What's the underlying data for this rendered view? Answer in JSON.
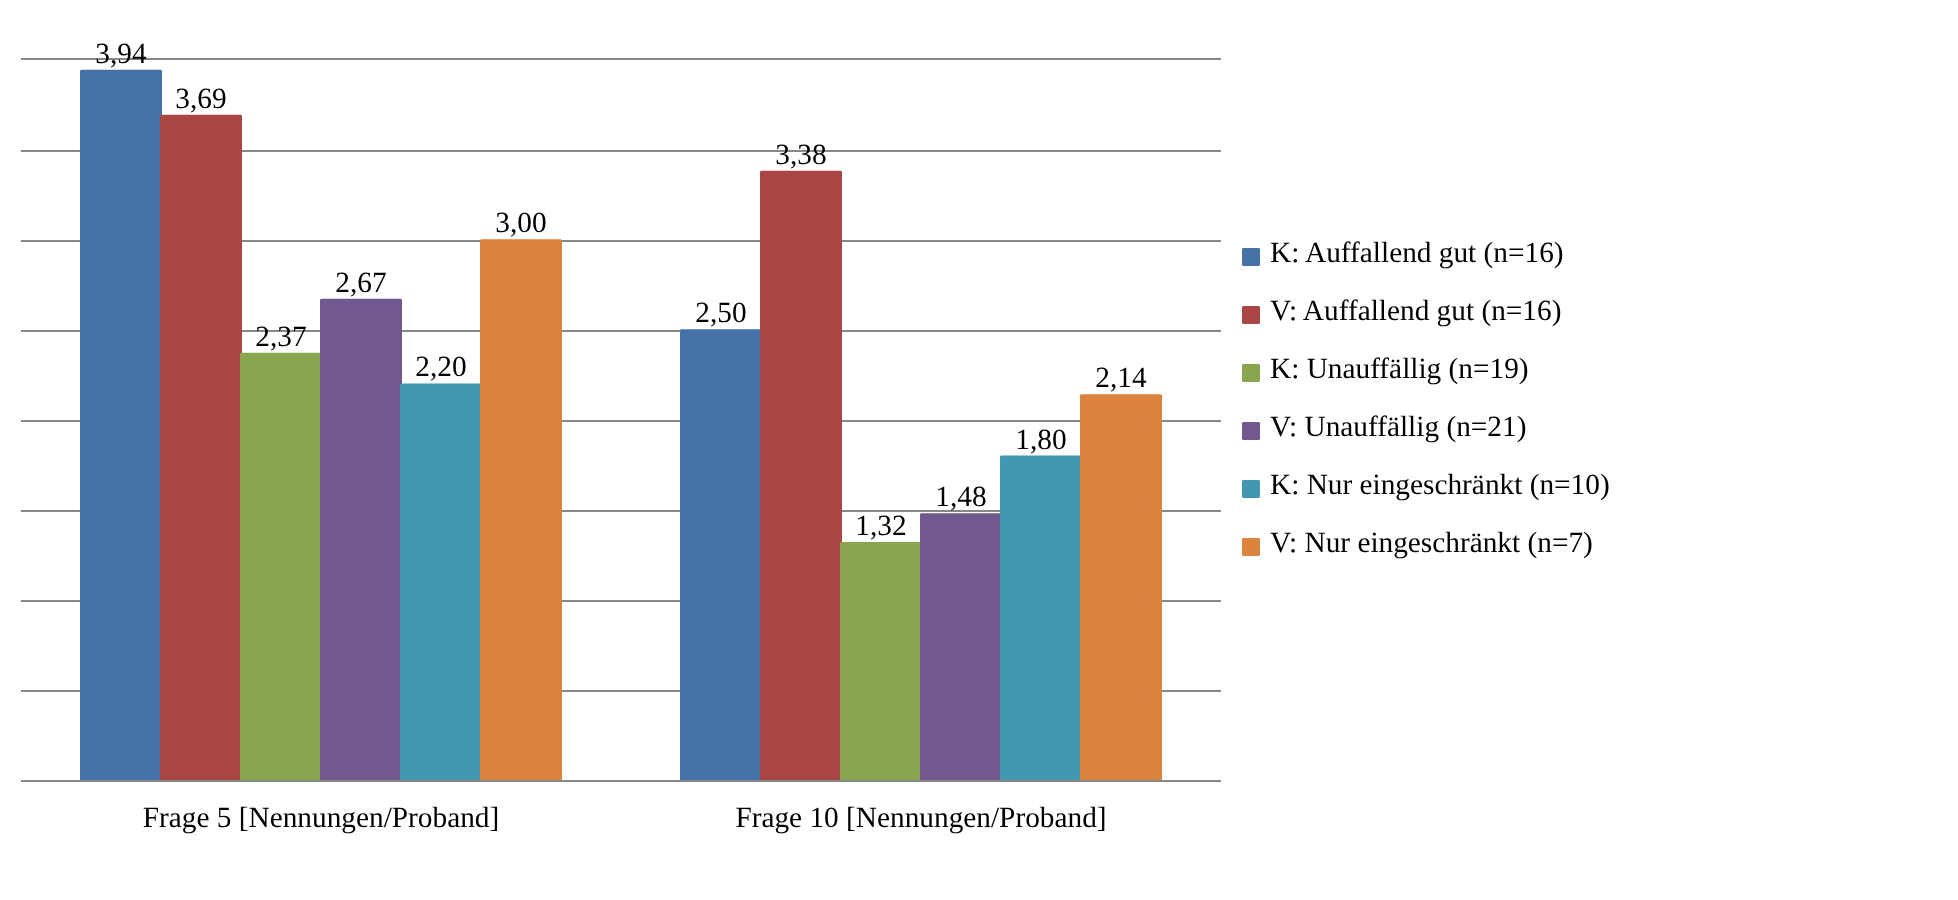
{
  "chart_data": {
    "type": "bar",
    "categories": [
      "Frage 5 [Nennungen/Proband]",
      "Frage 10 [Nennungen/Proband]"
    ],
    "series": [
      {
        "name": "K: Auffallend gut (n=16)",
        "color": "#4572a7",
        "values": [
          3.94,
          2.5
        ],
        "value_labels": [
          "3,94",
          "2,50"
        ]
      },
      {
        "name": "V: Auffallend gut (n=16)",
        "color": "#aa4643",
        "values": [
          3.69,
          3.38
        ],
        "value_labels": [
          "3,69",
          "3,38"
        ]
      },
      {
        "name": "K: Unauffällig (n=19)",
        "color": "#89a54e",
        "values": [
          2.37,
          1.32
        ],
        "value_labels": [
          "2,37",
          "1,32"
        ]
      },
      {
        "name": "V: Unauffällig (n=21)",
        "color": "#71588f",
        "values": [
          2.67,
          1.48
        ],
        "value_labels": [
          "2,67",
          "1,48"
        ]
      },
      {
        "name": "K: Nur eingeschränkt (n=10)",
        "color": "#4198af",
        "values": [
          2.2,
          1.8
        ],
        "value_labels": [
          "2,20",
          "1,80"
        ]
      },
      {
        "name": "V: Nur eingeschränkt (n=7)",
        "color": "#db843d",
        "values": [
          3.0,
          2.14
        ],
        "value_labels": [
          "3,00",
          "2,14"
        ]
      }
    ],
    "tick_labels": "x",
    "grid": "y",
    "legend": "right"
  }
}
